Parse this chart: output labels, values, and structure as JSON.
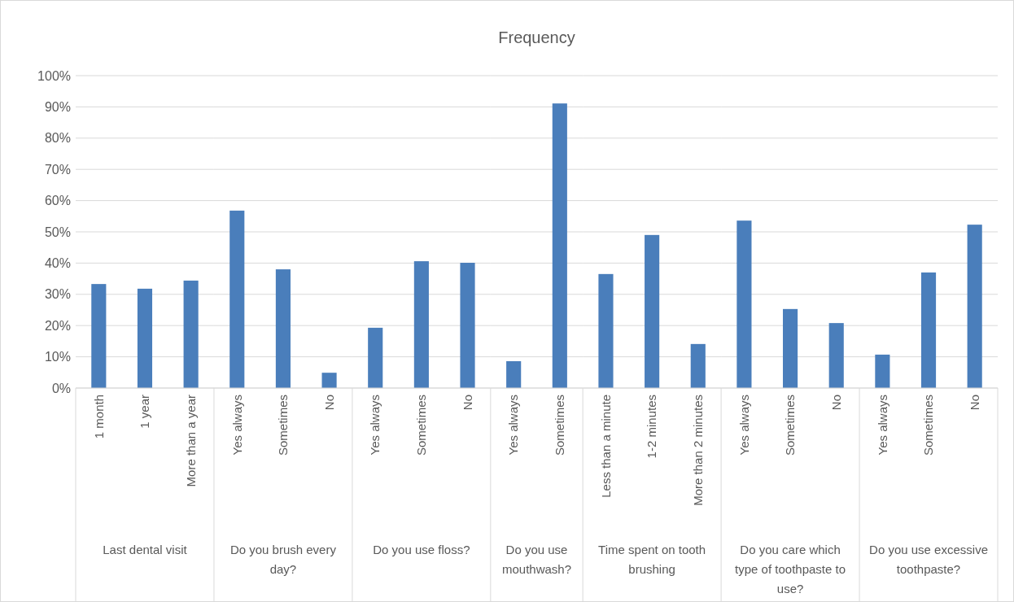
{
  "chart_data": [
    {
      "type": "bar",
      "xlabel": "Last dental visit",
      "categories": [
        "1 month",
        "1 year",
        "More than a year"
      ],
      "values": [
        33.3,
        31.8,
        34.4
      ],
      "color": "#4a7ebb",
      "ylim": [
        0,
        100
      ],
      "yticks": [
        {
          "value": 0,
          "label": "0%"
        },
        {
          "value": 10,
          "label": "10%"
        },
        {
          "value": 20,
          "label": "20%"
        },
        {
          "value": 30,
          "label": "30%"
        },
        {
          "value": 40,
          "label": "40%"
        },
        {
          "value": 50,
          "label": "50%"
        },
        {
          "value": 60,
          "label": "60%"
        },
        {
          "value": 70,
          "label": "70%"
        },
        {
          "value": 80,
          "label": "80%"
        },
        {
          "value": 90,
          "label": "90%"
        },
        {
          "value": 100,
          "label": "100%"
        }
      ],
      "grid": "y"
    },
    {
      "type": "bar",
      "xlabel": "Do you brush every day?",
      "categories": [
        "Yes always",
        "Sometimes",
        "No"
      ],
      "values": [
        56.8,
        38.0,
        4.9
      ],
      "color": "#4a7ebb",
      "ylim": [
        0,
        100
      ],
      "yticks": [
        {
          "value": 0,
          "label": null
        },
        {
          "value": 10,
          "label": null
        },
        {
          "value": 20,
          "label": null
        },
        {
          "value": 30,
          "label": null
        },
        {
          "value": 40,
          "label": null
        },
        {
          "value": 50,
          "label": null
        },
        {
          "value": 60,
          "label": null
        },
        {
          "value": 70,
          "label": null
        },
        {
          "value": 80,
          "label": null
        },
        {
          "value": 90,
          "label": null
        },
        {
          "value": 100,
          "label": null
        }
      ],
      "grid": "y",
      "tick_labels": "x"
    },
    {
      "type": "bar",
      "xlabel": "Do you use floss?",
      "categories": [
        "Yes always",
        "Sometimes",
        "No"
      ],
      "values": [
        19.3,
        40.6,
        40.1
      ],
      "color": "#4a7ebb",
      "ylim": [
        0,
        100
      ],
      "yticks": [
        {
          "value": 0,
          "label": null
        },
        {
          "value": 10,
          "label": null
        },
        {
          "value": 20,
          "label": null
        },
        {
          "value": 30,
          "label": null
        },
        {
          "value": 40,
          "label": null
        },
        {
          "value": 50,
          "label": null
        },
        {
          "value": 60,
          "label": null
        },
        {
          "value": 70,
          "label": null
        },
        {
          "value": 80,
          "label": null
        },
        {
          "value": 90,
          "label": null
        },
        {
          "value": 100,
          "label": null
        }
      ],
      "grid": "y",
      "tick_labels": "x"
    },
    {
      "type": "bar",
      "title": "Frequency",
      "xlabel": "Do you use mouthwash?",
      "categories": [
        "Yes always",
        "Sometimes"
      ],
      "values": [
        8.6,
        91.1
      ],
      "color": "#4a7ebb",
      "ylim": [
        0,
        100
      ],
      "yticks": [
        {
          "value": 0,
          "label": null
        },
        {
          "value": 10,
          "label": null
        },
        {
          "value": 20,
          "label": null
        },
        {
          "value": 30,
          "label": null
        },
        {
          "value": 40,
          "label": null
        },
        {
          "value": 50,
          "label": null
        },
        {
          "value": 60,
          "label": null
        },
        {
          "value": 70,
          "label": null
        },
        {
          "value": 80,
          "label": null
        },
        {
          "value": 90,
          "label": null
        },
        {
          "value": 100,
          "label": null
        }
      ],
      "grid": "y",
      "tick_labels": "x"
    },
    {
      "type": "bar",
      "xlabel": "Time spent on tooth brushing",
      "categories": [
        "Less than a minute",
        "1-2 minutes",
        "More than 2 minutes"
      ],
      "values": [
        36.5,
        49.0,
        14.1
      ],
      "color": "#4a7ebb",
      "ylim": [
        0,
        100
      ],
      "yticks": [
        {
          "value": 0,
          "label": null
        },
        {
          "value": 10,
          "label": null
        },
        {
          "value": 20,
          "label": null
        },
        {
          "value": 30,
          "label": null
        },
        {
          "value": 40,
          "label": null
        },
        {
          "value": 50,
          "label": null
        },
        {
          "value": 60,
          "label": null
        },
        {
          "value": 70,
          "label": null
        },
        {
          "value": 80,
          "label": null
        },
        {
          "value": 90,
          "label": null
        },
        {
          "value": 100,
          "label": null
        }
      ],
      "grid": "y",
      "tick_labels": "x"
    },
    {
      "type": "bar",
      "xlabel": "Do you care which type of toothpaste to use?",
      "categories": [
        "Yes always",
        "Sometimes",
        "No"
      ],
      "values": [
        53.6,
        25.3,
        20.8
      ],
      "color": "#4a7ebb",
      "ylim": [
        0,
        100
      ],
      "yticks": [
        {
          "value": 0,
          "label": null
        },
        {
          "value": 10,
          "label": null
        },
        {
          "value": 20,
          "label": null
        },
        {
          "value": 30,
          "label": null
        },
        {
          "value": 40,
          "label": null
        },
        {
          "value": 50,
          "label": null
        },
        {
          "value": 60,
          "label": null
        },
        {
          "value": 70,
          "label": null
        },
        {
          "value": 80,
          "label": null
        },
        {
          "value": 90,
          "label": null
        },
        {
          "value": 100,
          "label": null
        }
      ],
      "grid": "y",
      "tick_labels": "x"
    },
    {
      "type": "bar",
      "xlabel": "Do you use excessive toothpaste?",
      "categories": [
        "Yes always",
        "Sometimes",
        "No"
      ],
      "values": [
        10.7,
        37.0,
        52.3
      ],
      "color": "#4a7ebb",
      "ylim": [
        0,
        100
      ],
      "yticks": [
        {
          "value": 0,
          "label": null
        },
        {
          "value": 10,
          "label": null
        },
        {
          "value": 20,
          "label": null
        },
        {
          "value": 30,
          "label": null
        },
        {
          "value": 40,
          "label": null
        },
        {
          "value": 50,
          "label": null
        },
        {
          "value": 60,
          "label": null
        },
        {
          "value": 70,
          "label": null
        },
        {
          "value": 80,
          "label": null
        },
        {
          "value": 90,
          "label": null
        },
        {
          "value": 100,
          "label": null
        }
      ],
      "grid": "y",
      "tick_labels": "x"
    }
  ]
}
